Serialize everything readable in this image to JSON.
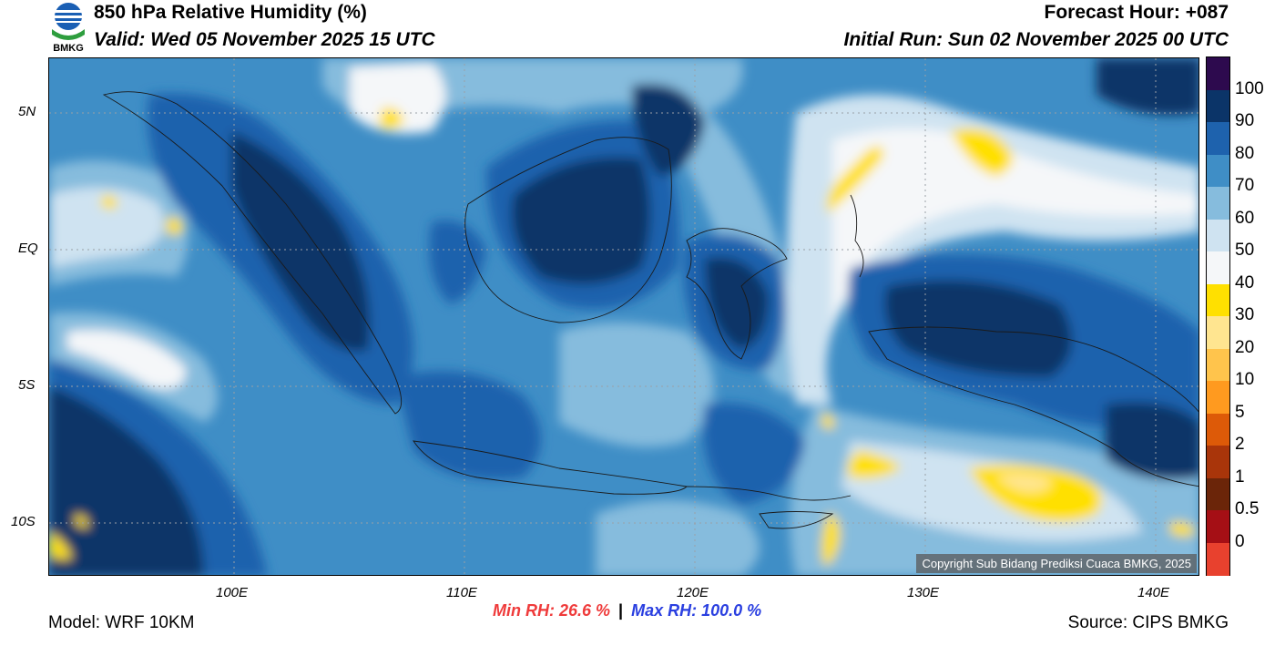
{
  "header": {
    "title": "850 hPa Relative Humidity (%)",
    "valid": "Valid: Wed 05 November 2025 15 UTC",
    "forecast_hour": "Forecast Hour: +087",
    "initial_run": "Initial Run: Sun 02 November 2025 00 UTC",
    "logo_text": "BMKG"
  },
  "axes": {
    "lat_labels": [
      "5N",
      "EQ",
      "5S",
      "10S"
    ],
    "lon_labels": [
      "100E",
      "110E",
      "120E",
      "130E",
      "140E"
    ]
  },
  "colorbar": {
    "labels": [
      "100",
      "90",
      "80",
      "70",
      "60",
      "50",
      "40",
      "30",
      "20",
      "10",
      "5",
      "2",
      "1",
      "0.5",
      "0"
    ],
    "colors": [
      "#2d0a4e",
      "#0b3468",
      "#1e62ad",
      "#3f8ec6",
      "#86bcdd",
      "#cfe3f1",
      "#f5f7f9",
      "#ffe000",
      "#ffe590",
      "#ffc44c",
      "#ff9a1f",
      "#dd5a08",
      "#a9350a",
      "#6b2509",
      "#a50f15",
      "#e8412e"
    ]
  },
  "stats": {
    "min": "Min RH:  26.6 %",
    "separator": "|",
    "max": "Max RH: 100.0 %"
  },
  "footer": {
    "model": "Model: WRF 10KM",
    "source": "Source: CIPS BMKG",
    "copyright": "Copyright Sub Bidang Prediksi Cuaca BMKG, 2025"
  }
}
